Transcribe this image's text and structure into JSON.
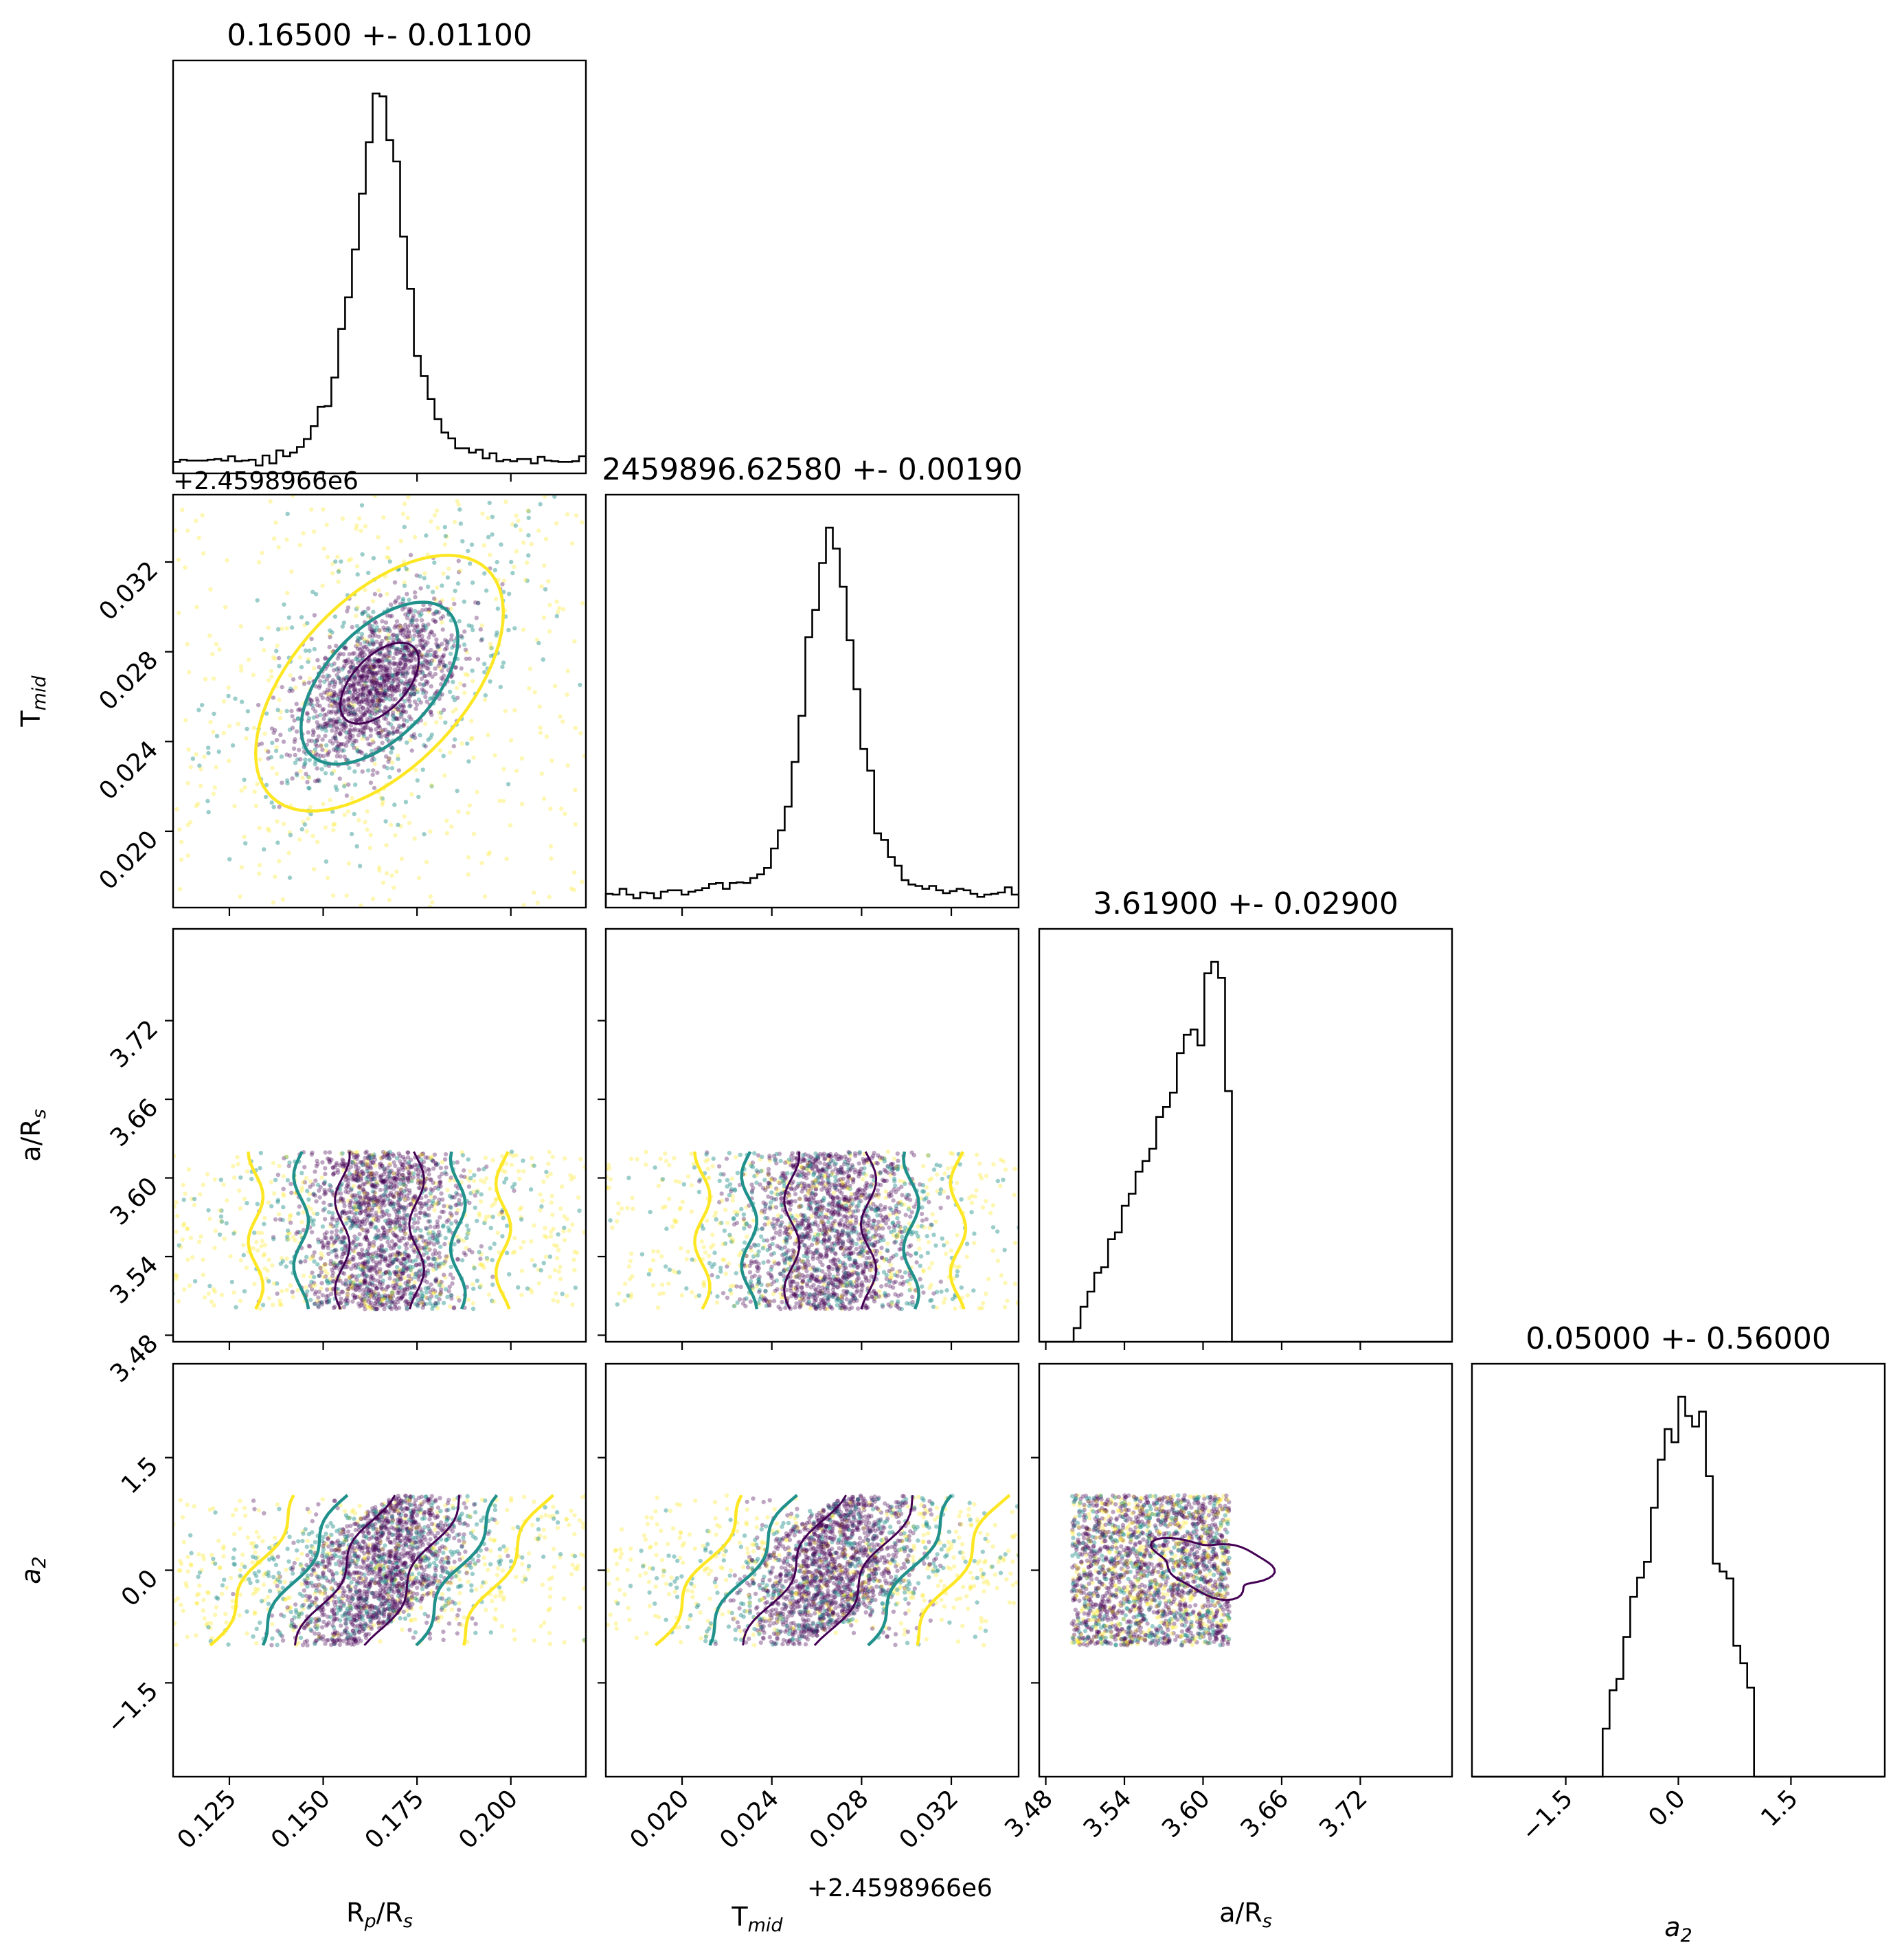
{
  "chart_data": {
    "type": "scatter",
    "layout": "corner",
    "params": [
      {
        "key": "rp",
        "label": "R",
        "label_sub": "p",
        "label_tail": "/R",
        "label_sub2": "s",
        "range": [
          0.11,
          0.22
        ],
        "ticks": [
          "0.125",
          "0.150",
          "0.175",
          "0.200"
        ],
        "title": "0.16500 +- 0.01100",
        "mean": 0.165,
        "std": 0.011
      },
      {
        "key": "tmid",
        "label": "T",
        "label_sub": "mid",
        "label_tail": "",
        "label_sub2": "",
        "range": [
          0.0166,
          0.035
        ],
        "ticks": [
          "0.020",
          "0.024",
          "0.028",
          "0.032"
        ],
        "offset": "+2.4598966e6",
        "title": "2459896.62580 +- 0.00190",
        "mean": 0.0266,
        "std": 0.0019
      },
      {
        "key": "ars",
        "label": "a/R",
        "label_sub": "s",
        "label_tail": "",
        "label_sub2": "",
        "range": [
          3.475,
          3.79
        ],
        "ticks": [
          "3.48",
          "3.54",
          "3.60",
          "3.66",
          "3.72"
        ],
        "title": "3.61900 +- 0.02900",
        "mean": 3.619,
        "std": 0.029,
        "prior": [
          3.5,
          3.62
        ]
      },
      {
        "key": "a2",
        "label": "a",
        "label_sub": "2",
        "label_tail": "",
        "label_sub2": "",
        "italic": true,
        "range": [
          -2.75,
          2.75
        ],
        "ticks": [
          "−1.5",
          "0.0",
          "1.5"
        ],
        "title": "0.05000 +- 0.56000",
        "mean": 0.05,
        "std": 0.56,
        "prior": [
          -1.0,
          1.0
        ]
      }
    ],
    "tick_values": {
      "rp": [
        0.125,
        0.15,
        0.175,
        0.2
      ],
      "tmid": [
        0.02,
        0.024,
        0.028,
        0.032
      ],
      "ars": [
        3.48,
        3.54,
        3.6,
        3.66,
        3.72
      ],
      "a2": [
        -1.5,
        0.0,
        1.5
      ]
    },
    "colors": {
      "inner": "#440154",
      "middle": "#21918c",
      "outer": "#fde725",
      "hist": "#000000"
    }
  }
}
